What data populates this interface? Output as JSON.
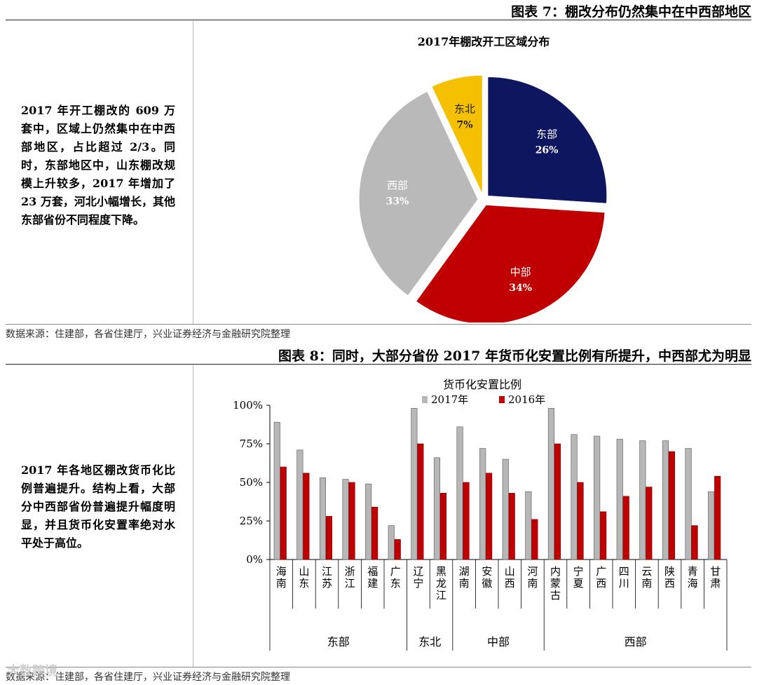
{
  "figure7": {
    "title": "图表 7：棚改分布仍然集中在中西部地区",
    "paragraph": "2017 年开工棚改的 609 万套中，区域上仍然集中在中西部地区，占比超过 2/3。同时，东部地区中，山东棚改规模上升较多，2017 年增加了 23 万套，河北小幅增长，其他东部省份不同程度下降。",
    "source": "数据来源：住建部，各省住建厅，兴业证券经济与金融研究院整理"
  },
  "figure8": {
    "title": "图表 8：同时，大部分省份 2017 年货币化安置比例有所提升，中西部尤为明显",
    "paragraph": "2017 年各地区棚改货币化比例普遍提升。结构上看，大部分中西部省份普遍提升幅度明显，并且货币化安置率绝对水平处于高位。",
    "source": "数据来源：住建部，各省住建厅，兴业证券经济与金融研究院整理"
  },
  "watermark": "大数跨境",
  "chart_data": [
    {
      "type": "pie",
      "title": "2017年棚改开工区域分布",
      "slices": [
        {
          "label": "东部",
          "value": 26,
          "display": "26%",
          "color": "#0e1660",
          "text_color": "#ffffff"
        },
        {
          "label": "中部",
          "value": 34,
          "display": "34%",
          "color": "#c00000",
          "text_color": "#ffffff"
        },
        {
          "label": "西部",
          "value": 33,
          "display": "33%",
          "color": "#b9b9b9",
          "text_color": "#ffffff"
        },
        {
          "label": "东北",
          "value": 7,
          "display": "7%",
          "color": "#f5c000",
          "text_color": "#222222"
        }
      ]
    },
    {
      "type": "bar",
      "title": "货币化安置比例",
      "categories": [
        "海南",
        "山东",
        "江苏",
        "浙江",
        "福建",
        "广东",
        "辽宁",
        "黑龙江",
        "湖南",
        "安徽",
        "山西",
        "河南",
        "内蒙古",
        "宁夏",
        "广西",
        "四川",
        "云南",
        "陕西",
        "青海",
        "甘肃"
      ],
      "groups": [
        {
          "label": "东部",
          "count": 6
        },
        {
          "label": "东北",
          "count": 2
        },
        {
          "label": "中部",
          "count": 4
        },
        {
          "label": "西部",
          "count": 8
        }
      ],
      "series": [
        {
          "name": "2017年",
          "color": "#b7b7b7",
          "values": [
            89,
            71,
            53,
            52,
            49,
            22,
            98,
            66,
            86,
            72,
            65,
            44,
            98,
            81,
            80,
            78,
            77,
            77,
            72,
            44
          ]
        },
        {
          "name": "2016年",
          "color": "#c00000",
          "values": [
            60,
            56,
            28,
            50,
            34,
            13,
            75,
            43,
            50,
            56,
            43,
            26,
            75,
            50,
            31,
            41,
            47,
            70,
            22,
            54
          ]
        }
      ],
      "ylim": [
        0,
        100
      ],
      "yticks": [
        "0%",
        "25%",
        "50%",
        "75%",
        "100%"
      ],
      "ytick_values": [
        0,
        25,
        50,
        75,
        100
      ]
    }
  ]
}
